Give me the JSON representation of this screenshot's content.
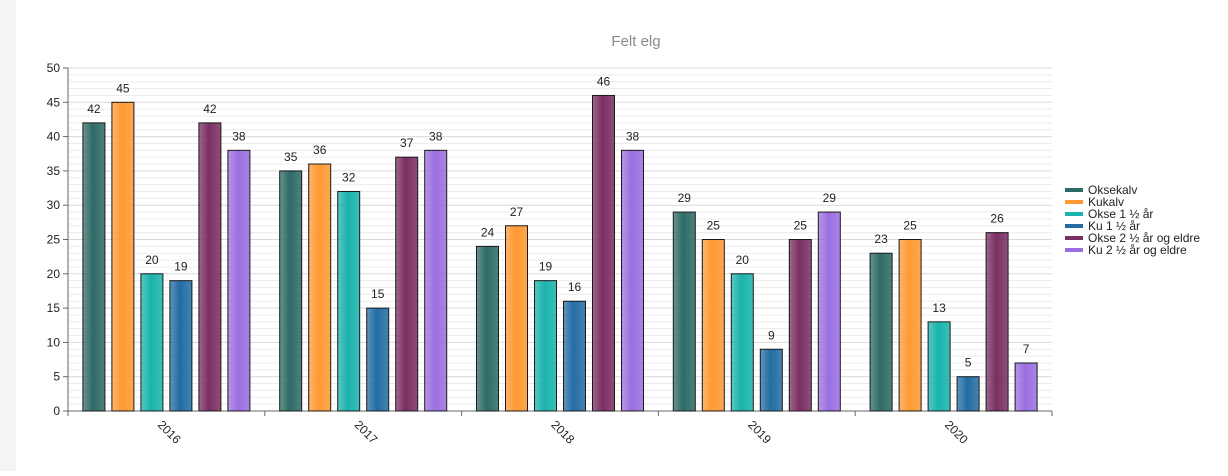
{
  "chart_data": {
    "type": "bar",
    "title": "Felt elg",
    "xlabel": "",
    "ylabel": "",
    "ylim": [
      0,
      50
    ],
    "yticks": [
      0,
      5,
      10,
      15,
      20,
      25,
      30,
      35,
      40,
      45,
      50
    ],
    "categories": [
      "2016",
      "2017",
      "2018",
      "2019",
      "2020"
    ],
    "legend_position": "right",
    "grid": true,
    "series": [
      {
        "name": "Oksekalv",
        "color": "#2e6b66",
        "values": [
          42,
          35,
          24,
          29,
          23
        ]
      },
      {
        "name": "Kukalv",
        "color": "#ff9933",
        "values": [
          45,
          36,
          27,
          25,
          25
        ]
      },
      {
        "name": "Okse 1 ½ år",
        "color": "#1ab3ad",
        "values": [
          20,
          32,
          19,
          20,
          13
        ]
      },
      {
        "name": "Ku 1 ½ år",
        "color": "#236da3",
        "values": [
          19,
          15,
          16,
          9,
          5
        ]
      },
      {
        "name": "Okse 2 ½ år og eldre",
        "color": "#7a2f62",
        "values": [
          42,
          37,
          46,
          25,
          26
        ]
      },
      {
        "name": "Ku 2 ½ år og eldre",
        "color": "#9b6fe0",
        "values": [
          38,
          38,
          38,
          29,
          7
        ]
      }
    ]
  }
}
